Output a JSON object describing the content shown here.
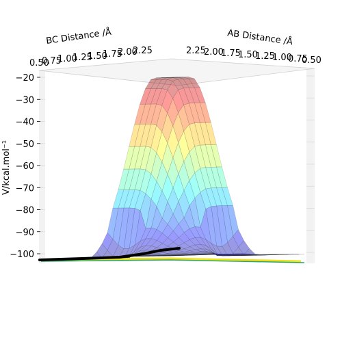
{
  "chart_data": {
    "type": "surface3d",
    "title": "",
    "x_axis_label": "AB Distance /Å",
    "y_axis_label": "BC Distance /Å",
    "z_axis_label": "V/kcal.mol⁻¹",
    "x_ticks": [
      "2.25",
      "2.00",
      "1.75",
      "1.50",
      "1.25",
      "1.00",
      "0.75",
      "0.50"
    ],
    "y_ticks": [
      "0.50",
      "0.75",
      "1.00",
      "1.25",
      "1.50",
      "1.75",
      "2.00",
      "2.25"
    ],
    "z_ticks": [
      "−100",
      "−90",
      "−80",
      "−70",
      "−60",
      "−50",
      "−40",
      "−30",
      "−20"
    ],
    "xlim": [
      0.5,
      2.3
    ],
    "ylim": [
      0.5,
      2.3
    ],
    "zlim": [
      -102,
      -20
    ],
    "colormap": "jet",
    "surface_alpha": 0.4,
    "trajectory": {
      "color": "#000000",
      "points": [
        [
          0.75,
          2.3,
          -101
        ],
        [
          0.76,
          2.0,
          -101
        ],
        [
          0.78,
          1.7,
          -100.5
        ],
        [
          0.8,
          1.4,
          -100
        ],
        [
          0.85,
          1.15,
          -99
        ],
        [
          0.95,
          0.95,
          -98
        ],
        [
          1.1,
          0.8,
          -97.5
        ]
      ]
    }
  }
}
